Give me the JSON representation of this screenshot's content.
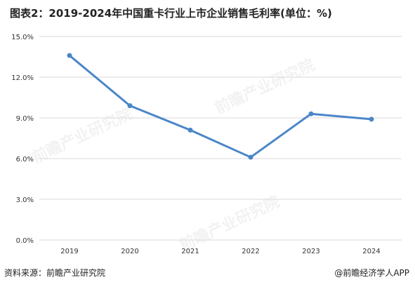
{
  "title": "图表2：2019-2024年中国重卡行业上市企业销售毛利率(单位：%)",
  "source": "资料来源：前瞻产业研究院",
  "credit": "@前瞻经济学人APP",
  "watermark": "前瞻产业研究院",
  "colors": {
    "line": "#4a86c8",
    "grid": "#d9d9d9",
    "axis_text": "#333333"
  },
  "chart_data": {
    "type": "line",
    "title": "图表2：2019-2024年中国重卡行业上市企业销售毛利率(单位：%)",
    "x": [
      "2019",
      "2020",
      "2021",
      "2022",
      "2023",
      "2024"
    ],
    "y_ticks": [
      "0.0%",
      "3.0%",
      "6.0%",
      "9.0%",
      "12.0%",
      "15.0%"
    ],
    "ylim": [
      0,
      15
    ],
    "grid": true,
    "series": [
      {
        "values": [
          13.6,
          9.9,
          8.1,
          6.1,
          9.3,
          8.9
        ]
      }
    ]
  }
}
